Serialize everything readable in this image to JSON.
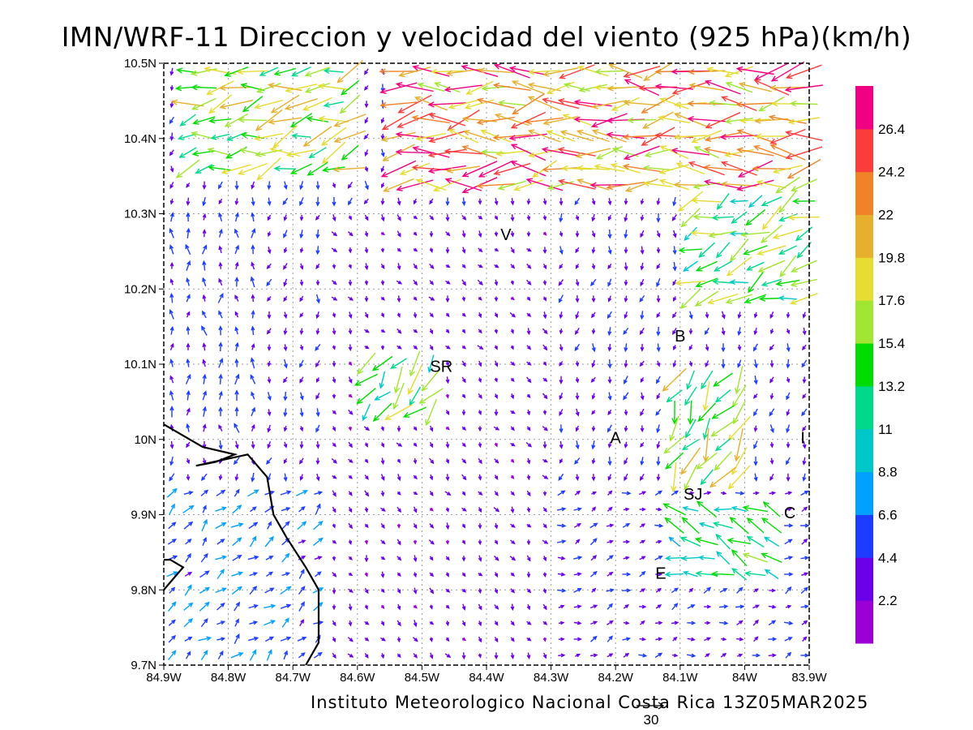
{
  "title": "IMN/WRF-11 Direccion y velocidad del viento (925 hPa)(km/h)",
  "credit": "Instituto Meteorologico Nacional Costa Rica 13Z05MAR2025",
  "reference_vector_label": "30",
  "map": {
    "lon_range": [
      -84.9,
      -83.9
    ],
    "lat_range": [
      9.7,
      10.5
    ],
    "x_tick_labels": [
      "84.9W",
      "84.8W",
      "84.7W",
      "84.6W",
      "84.5W",
      "84.4W",
      "84.3W",
      "84.2W",
      "84.1W",
      "84W",
      "83.9W"
    ],
    "y_tick_labels": [
      "9.7N",
      "9.8N",
      "9.9N",
      "10N",
      "10.1N",
      "10.2N",
      "10.3N",
      "10.4N",
      "10.5N"
    ],
    "grid": "dotted",
    "coastline": [
      [
        -84.9,
        10.02
      ],
      [
        -84.84,
        9.99
      ],
      [
        -84.79,
        9.98
      ],
      [
        -84.82,
        9.97
      ],
      [
        -84.85,
        9.965
      ],
      [
        -84.77,
        9.98
      ],
      [
        -84.74,
        9.95
      ],
      [
        -84.73,
        9.9
      ],
      [
        -84.71,
        9.87
      ],
      [
        -84.68,
        9.83
      ],
      [
        -84.66,
        9.8
      ],
      [
        -84.66,
        9.76
      ],
      [
        -84.66,
        9.73
      ],
      [
        -84.68,
        9.7
      ]
    ],
    "coastline_south": [
      [
        -84.9,
        9.8
      ],
      [
        -84.87,
        9.83
      ],
      [
        -84.89,
        9.84
      ],
      [
        -84.9,
        9.84
      ]
    ],
    "places": [
      {
        "label": "V",
        "lon": -84.37,
        "lat": 10.265
      },
      {
        "label": "SR",
        "lon": -84.47,
        "lat": 10.09
      },
      {
        "label": "B",
        "lon": -84.1,
        "lat": 10.13
      },
      {
        "label": "A",
        "lon": -84.2,
        "lat": 9.995
      },
      {
        "label": "I",
        "lon": -83.91,
        "lat": 9.995
      },
      {
        "label": "SJ",
        "lon": -84.08,
        "lat": 9.92
      },
      {
        "label": "C",
        "lon": -83.93,
        "lat": 9.895
      },
      {
        "label": "E",
        "lon": -84.13,
        "lat": 9.815
      }
    ]
  },
  "colorbar": {
    "labels": [
      "2.2",
      "4.4",
      "6.6",
      "8.8",
      "11",
      "13.2",
      "15.4",
      "17.6",
      "19.8",
      "22",
      "24.2",
      "26.4"
    ],
    "colors": [
      "#9b00d4",
      "#6a00e8",
      "#1e3cff",
      "#00a0ff",
      "#00c8c8",
      "#00d88c",
      "#00dc00",
      "#a0e632",
      "#e6dc32",
      "#e6af2d",
      "#f08228",
      "#fa3c3c",
      "#f00082"
    ]
  },
  "wind_field": {
    "units": "km/h",
    "regions": [
      {
        "lon": [
          -84.55,
          -83.9
        ],
        "lat": [
          10.32,
          10.5
        ],
        "dir": 185,
        "speed": 23
      },
      {
        "lon": [
          -84.88,
          -84.6
        ],
        "lat": [
          10.35,
          10.5
        ],
        "dir": 195,
        "speed": 16
      },
      {
        "lon": [
          -84.1,
          -83.9
        ],
        "lat": [
          10.18,
          10.32
        ],
        "dir": 205,
        "speed": 15
      },
      {
        "lon": [
          -84.12,
          -84.0
        ],
        "lat": [
          9.93,
          10.08
        ],
        "dir": 240,
        "speed": 16
      },
      {
        "lon": [
          -84.12,
          -83.95
        ],
        "lat": [
          9.82,
          9.92
        ],
        "dir": 160,
        "speed": 12
      },
      {
        "lon": [
          -84.9,
          -84.65
        ],
        "lat": [
          9.7,
          9.95
        ],
        "dir": 40,
        "speed": 6
      },
      {
        "lon": [
          -84.9,
          -84.75
        ],
        "lat": [
          10.0,
          10.3
        ],
        "dir": 90,
        "speed": 5
      },
      {
        "lon": [
          -84.6,
          -84.48
        ],
        "lat": [
          10.02,
          10.12
        ],
        "dir": 230,
        "speed": 15
      },
      {
        "lon": [
          -84.65,
          -84.3
        ],
        "lat": [
          9.7,
          10.3
        ],
        "dir": 300,
        "speed": 3
      }
    ]
  }
}
